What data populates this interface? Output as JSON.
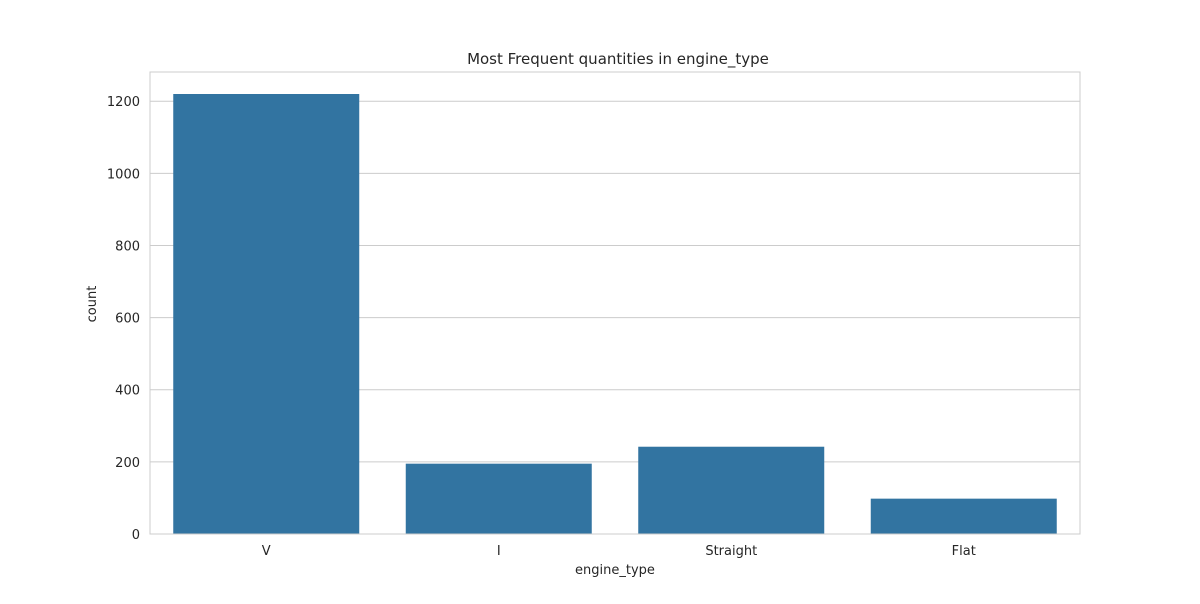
{
  "chart_data": {
    "type": "bar",
    "title": "Most Frequent quantities in engine_type",
    "xlabel": "engine_type",
    "ylabel": "count",
    "categories": [
      "V",
      "I",
      "Straight",
      "Flat"
    ],
    "values": [
      1220,
      195,
      242,
      98
    ],
    "ylim": [
      0,
      1281
    ],
    "yticks": [
      0,
      200,
      400,
      600,
      800,
      1000,
      1200
    ],
    "grid": true,
    "legend": "none",
    "bar_color": "#3274a1",
    "grid_color": "#cccccc",
    "spine_color": "#cccccc"
  }
}
